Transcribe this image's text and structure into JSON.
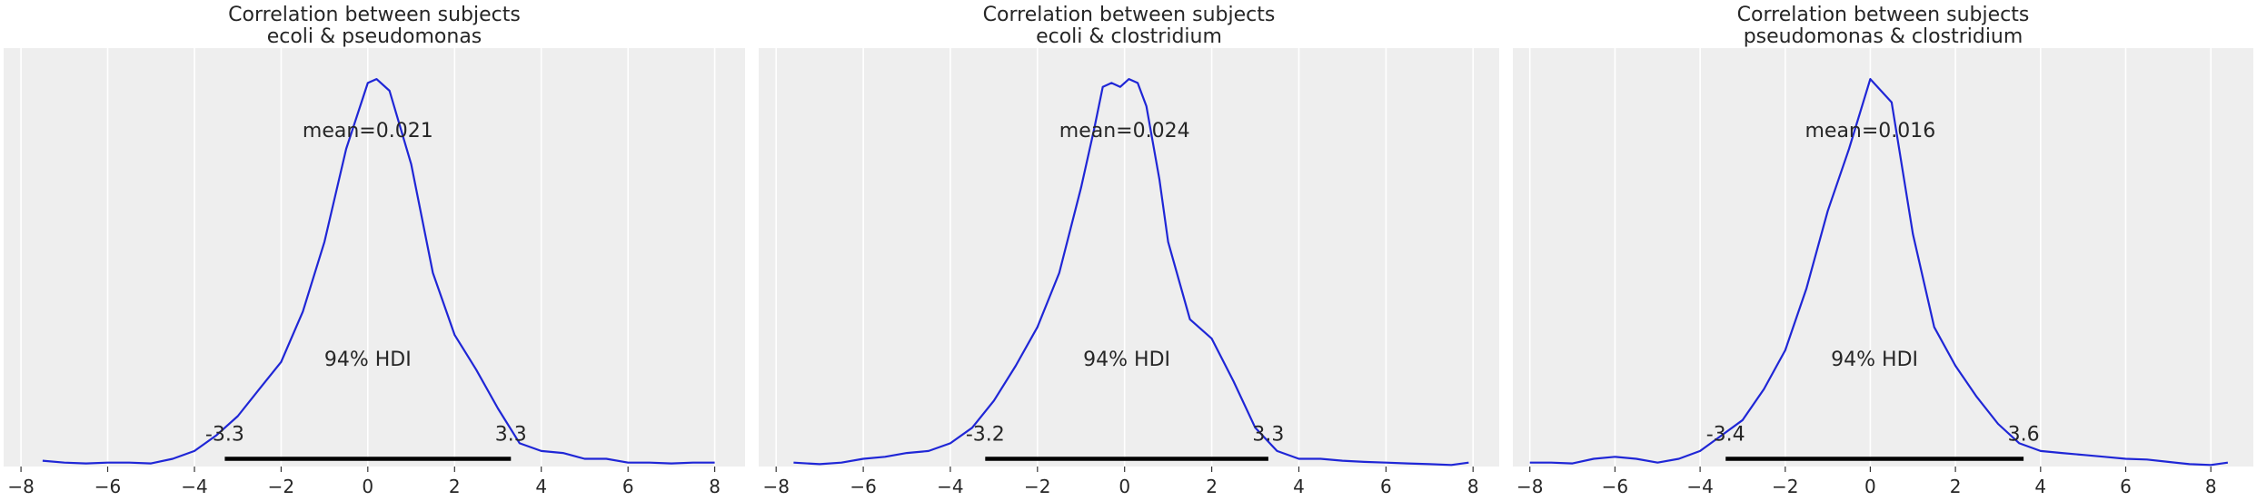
{
  "chart_data": [
    {
      "type": "density",
      "title": [
        "Correlation between subjects",
        "ecoli & pseudomonas"
      ],
      "mean_label": "mean=0.021",
      "hdi_label": "94% HDI",
      "hdi": [
        -3.3,
        3.3
      ],
      "hdi_low_label": "-3.3",
      "hdi_high_label": "3.3",
      "xlim": [
        -8.4,
        8.7
      ],
      "xticks": [
        -8,
        -6,
        -4,
        -2,
        0,
        2,
        4,
        6,
        8
      ],
      "xtick_labels": [
        "−8",
        "−6",
        "−4",
        "−2",
        "0",
        "2",
        "4",
        "6",
        "8"
      ],
      "ylim": [
        0,
        1.08
      ],
      "x": [
        -7.5,
        -7.0,
        -6.5,
        -6.0,
        -5.5,
        -5.0,
        -4.5,
        -4.0,
        -3.5,
        -3.0,
        -2.5,
        -2.0,
        -1.5,
        -1.0,
        -0.5,
        0.0,
        0.2,
        0.5,
        1.0,
        1.5,
        2.0,
        2.5,
        3.0,
        3.5,
        4.0,
        4.5,
        5.0,
        5.5,
        6.0,
        6.5,
        7.0,
        7.5,
        8.0
      ],
      "y": [
        0.015,
        0.01,
        0.008,
        0.01,
        0.01,
        0.008,
        0.02,
        0.04,
        0.08,
        0.13,
        0.2,
        0.27,
        0.4,
        0.58,
        0.82,
        0.99,
        1.0,
        0.97,
        0.78,
        0.5,
        0.34,
        0.25,
        0.15,
        0.06,
        0.04,
        0.035,
        0.02,
        0.02,
        0.01,
        0.01,
        0.008,
        0.01,
        0.01
      ]
    },
    {
      "type": "density",
      "title": [
        "Correlation between subjects",
        "ecoli & clostridium"
      ],
      "mean_label": "mean=0.024",
      "hdi_label": "94% HDI",
      "hdi": [
        -3.2,
        3.3
      ],
      "hdi_low_label": "-3.2",
      "hdi_high_label": "3.3",
      "xlim": [
        -8.4,
        8.6
      ],
      "xticks": [
        -8,
        -6,
        -4,
        -2,
        0,
        2,
        4,
        6,
        8
      ],
      "xtick_labels": [
        "−8",
        "−6",
        "−4",
        "−2",
        "0",
        "2",
        "4",
        "6",
        "8"
      ],
      "ylim": [
        0,
        1.08
      ],
      "x": [
        -7.6,
        -7.0,
        -6.5,
        -6.0,
        -5.5,
        -5.0,
        -4.5,
        -4.0,
        -3.5,
        -3.0,
        -2.5,
        -2.0,
        -1.5,
        -1.0,
        -0.7,
        -0.5,
        -0.3,
        -0.1,
        0.1,
        0.3,
        0.5,
        0.8,
        1.0,
        1.5,
        2.0,
        2.5,
        3.0,
        3.5,
        4.0,
        4.5,
        5.0,
        5.5,
        6.0,
        6.5,
        7.0,
        7.5,
        7.9
      ],
      "y": [
        0.01,
        0.006,
        0.01,
        0.02,
        0.025,
        0.035,
        0.04,
        0.06,
        0.1,
        0.17,
        0.26,
        0.36,
        0.5,
        0.72,
        0.87,
        0.98,
        0.99,
        0.98,
        1.0,
        0.99,
        0.93,
        0.74,
        0.58,
        0.38,
        0.33,
        0.22,
        0.1,
        0.04,
        0.02,
        0.02,
        0.015,
        0.012,
        0.01,
        0.008,
        0.006,
        0.004,
        0.01
      ]
    },
    {
      "type": "density",
      "title": [
        "Correlation between subjects",
        "pseudomonas & clostridium"
      ],
      "mean_label": "mean=0.016",
      "hdi_label": "94% HDI",
      "hdi": [
        -3.4,
        3.6
      ],
      "hdi_low_label": "-3.4",
      "hdi_high_label": "3.6",
      "xlim": [
        -8.4,
        9.0
      ],
      "xticks": [
        -8,
        -6,
        -4,
        -2,
        0,
        2,
        4,
        6,
        8
      ],
      "xtick_labels": [
        "−8",
        "−6",
        "−4",
        "−2",
        "0",
        "2",
        "4",
        "6",
        "8"
      ],
      "ylim": [
        0,
        1.08
      ],
      "x": [
        -8.0,
        -7.5,
        -7.0,
        -6.5,
        -6.0,
        -5.5,
        -5.0,
        -4.5,
        -4.0,
        -3.5,
        -3.0,
        -2.5,
        -2.0,
        -1.5,
        -1.0,
        -0.5,
        0.0,
        0.5,
        1.0,
        1.5,
        2.0,
        2.5,
        3.0,
        3.5,
        4.0,
        4.5,
        5.0,
        5.5,
        6.0,
        6.5,
        7.0,
        7.5,
        8.0,
        8.4
      ],
      "y": [
        0.01,
        0.01,
        0.008,
        0.02,
        0.025,
        0.02,
        0.01,
        0.02,
        0.04,
        0.08,
        0.12,
        0.2,
        0.3,
        0.46,
        0.66,
        0.82,
        1.0,
        0.94,
        0.6,
        0.36,
        0.26,
        0.18,
        0.11,
        0.06,
        0.04,
        0.035,
        0.03,
        0.025,
        0.02,
        0.018,
        0.012,
        0.006,
        0.004,
        0.01
      ]
    }
  ]
}
